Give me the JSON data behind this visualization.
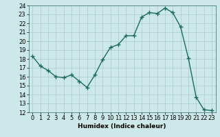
{
  "title": "",
  "xlabel": "Humidex (Indice chaleur)",
  "ylabel": "",
  "x_values": [
    0,
    1,
    2,
    3,
    4,
    5,
    6,
    7,
    8,
    9,
    10,
    11,
    12,
    13,
    14,
    15,
    16,
    17,
    18,
    19,
    20,
    21,
    22,
    23
  ],
  "y_values": [
    18.3,
    17.2,
    16.7,
    16.0,
    15.9,
    16.2,
    15.5,
    14.8,
    16.2,
    17.9,
    19.3,
    19.6,
    20.6,
    20.6,
    22.7,
    23.2,
    23.1,
    23.7,
    23.2,
    21.6,
    18.1,
    13.7,
    12.3,
    12.2
  ],
  "line_color": "#1a6b5a",
  "marker": "+",
  "marker_size": 4,
  "bg_color": "#cce8e8",
  "grid_color": "#aacccc",
  "ylim": [
    12,
    24
  ],
  "xlim": [
    -0.5,
    23.5
  ],
  "yticks": [
    12,
    13,
    14,
    15,
    16,
    17,
    18,
    19,
    20,
    21,
    22,
    23,
    24
  ],
  "xticks": [
    0,
    1,
    2,
    3,
    4,
    5,
    6,
    7,
    8,
    9,
    10,
    11,
    12,
    13,
    14,
    15,
    16,
    17,
    18,
    19,
    20,
    21,
    22,
    23
  ],
  "label_fontsize": 6.5,
  "tick_fontsize": 6.0,
  "line_width": 1.0,
  "marker_edge_width": 1.0
}
